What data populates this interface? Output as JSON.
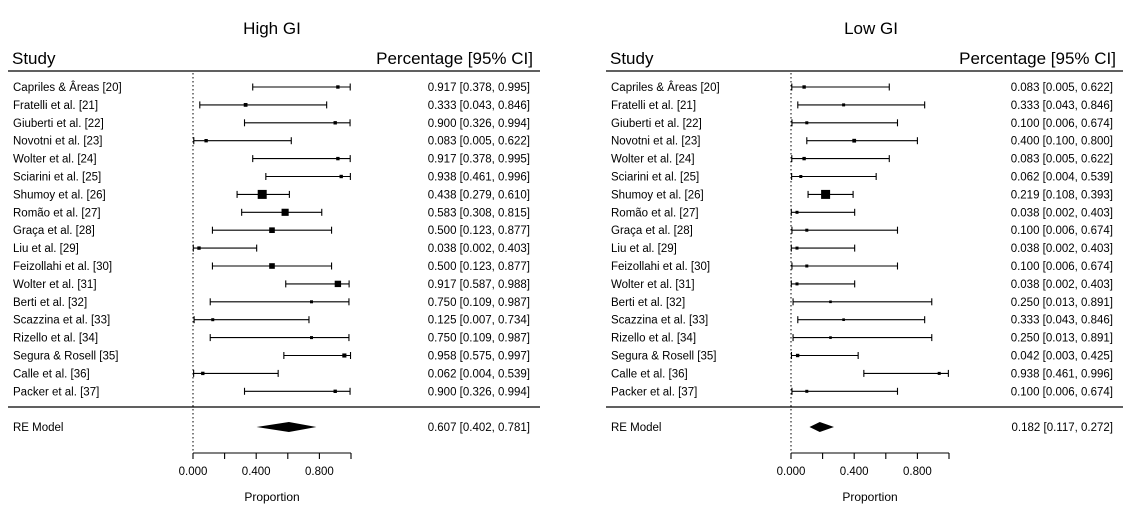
{
  "chart_data": [
    {
      "type": "forest",
      "title": "High GI",
      "left_header": "Study",
      "right_header": "Percentage [95% CI]",
      "xlabel": "Proportion",
      "xlim": [
        0,
        1
      ],
      "ticks": [
        0,
        0.2,
        0.4,
        0.6,
        0.8,
        1
      ],
      "tick_labels": [
        {
          "value": 0,
          "text": "0.000"
        },
        {
          "value": 0.4,
          "text": "0.400"
        },
        {
          "value": 0.8,
          "text": "0.800"
        }
      ],
      "reference_line": 0,
      "studies": [
        {
          "name": "Capriles & Âreas [20]",
          "est": 0.917,
          "lo": 0.378,
          "hi": 0.995,
          "weight": 0.25,
          "ci_text": "0.917 [0.378, 0.995]"
        },
        {
          "name": "Fratelli et al. [21]",
          "est": 0.333,
          "lo": 0.043,
          "hi": 0.846,
          "weight": 0.3,
          "ci_text": "0.333 [0.043, 0.846]"
        },
        {
          "name": "Giuberti et al. [22]",
          "est": 0.9,
          "lo": 0.326,
          "hi": 0.994,
          "weight": 0.25,
          "ci_text": "0.900 [0.326, 0.994]"
        },
        {
          "name": "Novotni et al. [23]",
          "est": 0.083,
          "lo": 0.005,
          "hi": 0.622,
          "weight": 0.25,
          "ci_text": "0.083 [0.005, 0.622]"
        },
        {
          "name": "Wolter et al. [24]",
          "est": 0.917,
          "lo": 0.378,
          "hi": 0.995,
          "weight": 0.25,
          "ci_text": "0.917 [0.378, 0.995]"
        },
        {
          "name": "Sciarini et al. [25]",
          "est": 0.938,
          "lo": 0.461,
          "hi": 0.996,
          "weight": 0.25,
          "ci_text": "0.938 [0.461, 0.996]"
        },
        {
          "name": "Shumoy et al. [26]",
          "est": 0.438,
          "lo": 0.279,
          "hi": 0.61,
          "weight": 1.0,
          "ci_text": "0.438 [0.279, 0.610]"
        },
        {
          "name": "Romão et al. [27]",
          "est": 0.583,
          "lo": 0.308,
          "hi": 0.815,
          "weight": 0.75,
          "ci_text": "0.583 [0.308, 0.815]"
        },
        {
          "name": "Graça et al. [28]",
          "est": 0.5,
          "lo": 0.123,
          "hi": 0.877,
          "weight": 0.55,
          "ci_text": "0.500 [0.123, 0.877]"
        },
        {
          "name": "Liu et al. [29]",
          "est": 0.038,
          "lo": 0.002,
          "hi": 0.403,
          "weight": 0.25,
          "ci_text": "0.038 [0.002, 0.403]"
        },
        {
          "name": "Feizollahi et al. [30]",
          "est": 0.5,
          "lo": 0.123,
          "hi": 0.877,
          "weight": 0.55,
          "ci_text": "0.500 [0.123, 0.877]"
        },
        {
          "name": "Wolter et al. [31]",
          "est": 0.917,
          "lo": 0.587,
          "hi": 0.988,
          "weight": 0.65,
          "ci_text": "0.917 [0.587, 0.988]"
        },
        {
          "name": "Berti et al. [32]",
          "est": 0.75,
          "lo": 0.109,
          "hi": 0.987,
          "weight": 0.2,
          "ci_text": "0.750 [0.109, 0.987]"
        },
        {
          "name": "Scazzina et al. [33]",
          "est": 0.125,
          "lo": 0.007,
          "hi": 0.734,
          "weight": 0.2,
          "ci_text": "0.125 [0.007, 0.734]"
        },
        {
          "name": "Rizello et al. [34]",
          "est": 0.75,
          "lo": 0.109,
          "hi": 0.987,
          "weight": 0.2,
          "ci_text": "0.750 [0.109, 0.987]"
        },
        {
          "name": "Segura & Rosell [35]",
          "est": 0.958,
          "lo": 0.575,
          "hi": 0.997,
          "weight": 0.35,
          "ci_text": "0.958 [0.575, 0.997]"
        },
        {
          "name": "Calle et al. [36]",
          "est": 0.062,
          "lo": 0.004,
          "hi": 0.539,
          "weight": 0.25,
          "ci_text": "0.062 [0.004, 0.539]"
        },
        {
          "name": "Packer et al. [37]",
          "est": 0.9,
          "lo": 0.326,
          "hi": 0.994,
          "weight": 0.25,
          "ci_text": "0.900 [0.326, 0.994]"
        }
      ],
      "summary": {
        "name": "RE Model",
        "est": 0.607,
        "lo": 0.402,
        "hi": 0.781,
        "ci_text": "0.607 [0.402, 0.781]"
      }
    },
    {
      "type": "forest",
      "title": "Low GI",
      "left_header": "Study",
      "right_header": "Percentage [95% CI]",
      "xlabel": "Proportion",
      "xlim": [
        0,
        1
      ],
      "ticks": [
        0,
        0.2,
        0.4,
        0.6,
        0.8,
        1
      ],
      "tick_labels": [
        {
          "value": 0,
          "text": "0.000"
        },
        {
          "value": 0.4,
          "text": "0.400"
        },
        {
          "value": 0.8,
          "text": "0.800"
        }
      ],
      "reference_line": 0,
      "studies": [
        {
          "name": "Capriles & Âreas [20]",
          "est": 0.083,
          "lo": 0.005,
          "hi": 0.622,
          "weight": 0.25,
          "ci_text": "0.083 [0.005, 0.622]"
        },
        {
          "name": "Fratelli et al. [21]",
          "est": 0.333,
          "lo": 0.043,
          "hi": 0.846,
          "weight": 0.2,
          "ci_text": "0.333 [0.043, 0.846]"
        },
        {
          "name": "Giuberti et al. [22]",
          "est": 0.1,
          "lo": 0.006,
          "hi": 0.674,
          "weight": 0.2,
          "ci_text": "0.100 [0.006, 0.674]"
        },
        {
          "name": "Novotni et al. [23]",
          "est": 0.4,
          "lo": 0.1,
          "hi": 0.8,
          "weight": 0.3,
          "ci_text": "0.400 [0.100, 0.800]"
        },
        {
          "name": "Wolter et al. [24]",
          "est": 0.083,
          "lo": 0.005,
          "hi": 0.622,
          "weight": 0.25,
          "ci_text": "0.083 [0.005, 0.622]"
        },
        {
          "name": "Sciarini et al. [25]",
          "est": 0.062,
          "lo": 0.004,
          "hi": 0.539,
          "weight": 0.2,
          "ci_text": "0.062 [0.004, 0.539]"
        },
        {
          "name": "Shumoy et al. [26]",
          "est": 0.219,
          "lo": 0.108,
          "hi": 0.393,
          "weight": 1.0,
          "ci_text": "0.219 [0.108, 0.393]"
        },
        {
          "name": "Romão et al. [27]",
          "est": 0.038,
          "lo": 0.002,
          "hi": 0.403,
          "weight": 0.2,
          "ci_text": "0.038 [0.002, 0.403]"
        },
        {
          "name": "Graça et al. [28]",
          "est": 0.1,
          "lo": 0.006,
          "hi": 0.674,
          "weight": 0.2,
          "ci_text": "0.100 [0.006, 0.674]"
        },
        {
          "name": "Liu et al. [29]",
          "est": 0.038,
          "lo": 0.002,
          "hi": 0.403,
          "weight": 0.2,
          "ci_text": "0.038 [0.002, 0.403]"
        },
        {
          "name": "Feizollahi et al. [30]",
          "est": 0.1,
          "lo": 0.006,
          "hi": 0.674,
          "weight": 0.2,
          "ci_text": "0.100 [0.006, 0.674]"
        },
        {
          "name": "Wolter et al. [31]",
          "est": 0.038,
          "lo": 0.002,
          "hi": 0.403,
          "weight": 0.2,
          "ci_text": "0.038 [0.002, 0.403]"
        },
        {
          "name": "Berti et al. [32]",
          "est": 0.25,
          "lo": 0.013,
          "hi": 0.891,
          "weight": 0.15,
          "ci_text": "0.250 [0.013, 0.891]"
        },
        {
          "name": "Scazzina et al. [33]",
          "est": 0.333,
          "lo": 0.043,
          "hi": 0.846,
          "weight": 0.15,
          "ci_text": "0.333 [0.043, 0.846]"
        },
        {
          "name": "Rizello et al. [34]",
          "est": 0.25,
          "lo": 0.013,
          "hi": 0.891,
          "weight": 0.15,
          "ci_text": "0.250 [0.013, 0.891]"
        },
        {
          "name": "Segura & Rosell [35]",
          "est": 0.042,
          "lo": 0.003,
          "hi": 0.425,
          "weight": 0.25,
          "ci_text": "0.042 [0.003, 0.425]"
        },
        {
          "name": "Calle et al. [36]",
          "est": 0.938,
          "lo": 0.461,
          "hi": 0.996,
          "weight": 0.2,
          "ci_text": "0.938 [0.461, 0.996]"
        },
        {
          "name": "Packer et al. [37]",
          "est": 0.1,
          "lo": 0.006,
          "hi": 0.674,
          "weight": 0.2,
          "ci_text": "0.100 [0.006, 0.674]"
        }
      ],
      "summary": {
        "name": "RE Model",
        "est": 0.182,
        "lo": 0.117,
        "hi": 0.272,
        "ci_text": "0.182 [0.117, 0.272]"
      }
    }
  ]
}
